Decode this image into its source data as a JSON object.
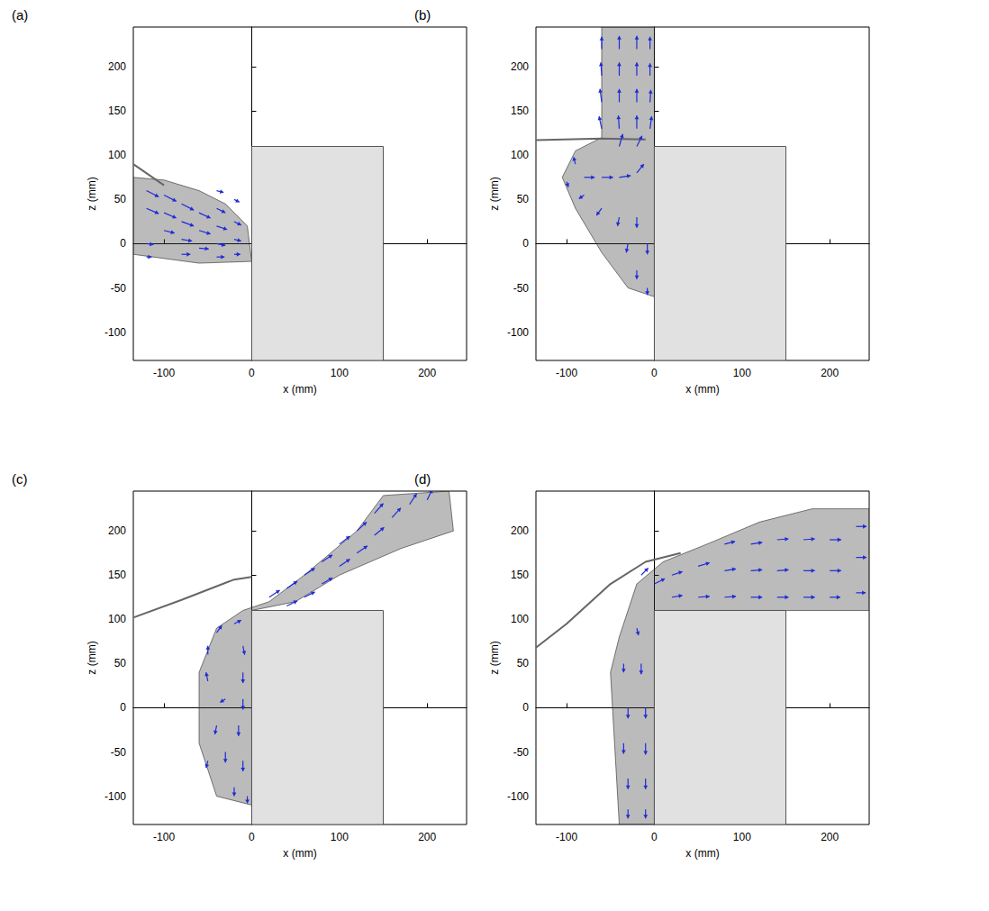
{
  "chart_data": [
    {
      "type": "quiver",
      "title": "(a)",
      "xlabel": "x (mm)",
      "ylabel": "z (mm)",
      "xlim": [
        -135,
        245
      ],
      "ylim": [
        -132,
        245
      ],
      "xticks": [
        -100,
        0,
        100,
        200
      ],
      "yticks": [
        -100,
        -50,
        0,
        50,
        100,
        150,
        200
      ],
      "color": "#1f2ad6",
      "block": {
        "x": [
          0,
          150
        ],
        "z": [
          -132,
          110
        ]
      },
      "surface": [
        [
          -135,
          90
        ],
        [
          -100,
          66
        ]
      ],
      "water": [
        [
          -135,
          75
        ],
        [
          -100,
          72
        ],
        [
          -60,
          60
        ],
        [
          -30,
          45
        ],
        [
          -5,
          20
        ],
        [
          0,
          -20
        ],
        [
          -60,
          -22
        ],
        [
          -135,
          -12
        ]
      ],
      "vectors": [
        [
          -120,
          60,
          14,
          -7
        ],
        [
          -120,
          40,
          14,
          -6
        ],
        [
          -100,
          55,
          14,
          -7
        ],
        [
          -100,
          35,
          14,
          -6
        ],
        [
          -100,
          15,
          12,
          -3
        ],
        [
          -80,
          45,
          14,
          -7
        ],
        [
          -80,
          25,
          14,
          -5
        ],
        [
          -80,
          5,
          12,
          -2
        ],
        [
          -80,
          -12,
          10,
          0
        ],
        [
          -60,
          35,
          13,
          -6
        ],
        [
          -60,
          15,
          13,
          -4
        ],
        [
          -60,
          -5,
          11,
          -1
        ],
        [
          -40,
          60,
          8,
          -2
        ],
        [
          -40,
          40,
          10,
          -5
        ],
        [
          -40,
          20,
          12,
          -4
        ],
        [
          -40,
          0,
          10,
          -2
        ],
        [
          -40,
          -15,
          9,
          0
        ],
        [
          -20,
          50,
          6,
          -3
        ],
        [
          -20,
          25,
          8,
          -4
        ],
        [
          -20,
          5,
          8,
          -2
        ],
        [
          -20,
          -12,
          7,
          0
        ],
        [
          -120,
          0,
          8,
          -1
        ],
        [
          -120,
          -15,
          6,
          0
        ]
      ]
    },
    {
      "type": "quiver",
      "title": "(b)",
      "xlabel": "x (mm)",
      "ylabel": "z (mm)",
      "xlim": [
        -135,
        245
      ],
      "ylim": [
        -132,
        245
      ],
      "xticks": [
        -100,
        0,
        100,
        200
      ],
      "yticks": [
        -100,
        -50,
        0,
        50,
        100,
        150,
        200
      ],
      "color": "#1f2ad6",
      "block": {
        "x": [
          0,
          150
        ],
        "z": [
          -132,
          110
        ]
      },
      "surface": [
        [
          -135,
          117
        ],
        [
          -60,
          119
        ],
        [
          -10,
          118
        ]
      ],
      "water": [
        [
          -60,
          245
        ],
        [
          0,
          245
        ],
        [
          0,
          -60
        ],
        [
          -30,
          -50
        ],
        [
          -60,
          -10
        ],
        [
          -90,
          40
        ],
        [
          -105,
          75
        ],
        [
          -90,
          105
        ],
        [
          -60,
          120
        ]
      ],
      "vectors": [
        [
          -60,
          130,
          -3,
          14
        ],
        [
          -60,
          160,
          -2,
          15
        ],
        [
          -60,
          190,
          -1,
          15
        ],
        [
          -60,
          220,
          0,
          14
        ],
        [
          -40,
          130,
          -1,
          15
        ],
        [
          -40,
          160,
          0,
          15
        ],
        [
          -40,
          190,
          0,
          15
        ],
        [
          -40,
          220,
          0,
          15
        ],
        [
          -20,
          130,
          0,
          15
        ],
        [
          -20,
          160,
          0,
          15
        ],
        [
          -20,
          190,
          0,
          15
        ],
        [
          -20,
          220,
          0,
          15
        ],
        [
          -5,
          130,
          2,
          14
        ],
        [
          -5,
          160,
          1,
          14
        ],
        [
          -5,
          190,
          0,
          14
        ],
        [
          -5,
          220,
          0,
          14
        ],
        [
          -40,
          110,
          4,
          14
        ],
        [
          -20,
          110,
          6,
          12
        ],
        [
          -90,
          90,
          -2,
          8
        ],
        [
          -100,
          70,
          2,
          -6
        ],
        [
          -80,
          75,
          12,
          0
        ],
        [
          -60,
          75,
          13,
          0
        ],
        [
          -40,
          75,
          13,
          2
        ],
        [
          -20,
          80,
          8,
          10
        ],
        [
          -80,
          55,
          -6,
          -4
        ],
        [
          -60,
          40,
          -6,
          -8
        ],
        [
          -40,
          30,
          -2,
          -10
        ],
        [
          -20,
          30,
          0,
          -12
        ],
        [
          -30,
          0,
          -2,
          -10
        ],
        [
          -8,
          0,
          0,
          -12
        ],
        [
          -20,
          -30,
          0,
          -10
        ],
        [
          -8,
          -50,
          0,
          -8
        ]
      ]
    },
    {
      "type": "quiver",
      "title": "(c)",
      "xlabel": "x (mm)",
      "ylabel": "z (mm)",
      "xlim": [
        -135,
        245
      ],
      "ylim": [
        -132,
        245
      ],
      "xticks": [
        -100,
        0,
        100,
        200
      ],
      "yticks": [
        -100,
        -50,
        0,
        50,
        100,
        150,
        200
      ],
      "color": "#1f2ad6",
      "block": {
        "x": [
          0,
          150
        ],
        "z": [
          -132,
          110
        ]
      },
      "surface": [
        [
          -135,
          102
        ],
        [
          -80,
          122
        ],
        [
          -20,
          145
        ],
        [
          0,
          148
        ]
      ],
      "water": [
        [
          0,
          -110
        ],
        [
          -40,
          -100
        ],
        [
          -60,
          -40
        ],
        [
          -60,
          40
        ],
        [
          -40,
          90
        ],
        [
          -10,
          110
        ],
        [
          20,
          120
        ],
        [
          60,
          150
        ],
        [
          120,
          200
        ],
        [
          150,
          240
        ],
        [
          225,
          245
        ],
        [
          230,
          200
        ],
        [
          170,
          180
        ],
        [
          100,
          150
        ],
        [
          50,
          120
        ],
        [
          0,
          110
        ]
      ],
      "vectors": [
        [
          20,
          125,
          12,
          8
        ],
        [
          40,
          135,
          12,
          8
        ],
        [
          60,
          150,
          12,
          8
        ],
        [
          80,
          140,
          12,
          7
        ],
        [
          80,
          165,
          12,
          8
        ],
        [
          100,
          160,
          12,
          8
        ],
        [
          100,
          185,
          12,
          9
        ],
        [
          120,
          175,
          12,
          8
        ],
        [
          120,
          200,
          11,
          10
        ],
        [
          140,
          195,
          11,
          9
        ],
        [
          140,
          220,
          10,
          11
        ],
        [
          160,
          215,
          10,
          11
        ],
        [
          180,
          230,
          8,
          12
        ],
        [
          200,
          235,
          6,
          12
        ],
        [
          40,
          115,
          12,
          6
        ],
        [
          60,
          125,
          12,
          6
        ],
        [
          -50,
          60,
          0,
          10
        ],
        [
          -40,
          85,
          6,
          8
        ],
        [
          -20,
          95,
          8,
          4
        ],
        [
          -10,
          70,
          2,
          -10
        ],
        [
          -10,
          40,
          0,
          -12
        ],
        [
          -50,
          30,
          -2,
          10
        ],
        [
          -30,
          10,
          -6,
          -4
        ],
        [
          -10,
          10,
          0,
          -12
        ],
        [
          -40,
          -20,
          -2,
          -10
        ],
        [
          -15,
          -20,
          0,
          -12
        ],
        [
          -30,
          -50,
          0,
          -12
        ],
        [
          -10,
          -60,
          0,
          -12
        ],
        [
          -20,
          -90,
          0,
          -10
        ],
        [
          -5,
          -100,
          0,
          -8
        ],
        [
          -50,
          -60,
          -2,
          -8
        ]
      ]
    },
    {
      "type": "quiver",
      "title": "(d)",
      "xlabel": "x (mm)",
      "ylabel": "z (mm)",
      "xlim": [
        -135,
        245
      ],
      "ylim": [
        -132,
        245
      ],
      "xticks": [
        -100,
        0,
        100,
        200
      ],
      "yticks": [
        -100,
        -50,
        0,
        50,
        100,
        150,
        200
      ],
      "color": "#1f2ad6",
      "block": {
        "x": [
          0,
          150
        ],
        "z": [
          -132,
          110
        ]
      },
      "surface": [
        [
          -135,
          68
        ],
        [
          -100,
          95
        ],
        [
          -50,
          140
        ],
        [
          -10,
          165
        ],
        [
          30,
          175
        ]
      ],
      "water": [
        [
          -40,
          -132
        ],
        [
          0,
          -132
        ],
        [
          0,
          110
        ],
        [
          245,
          110
        ],
        [
          245,
          225
        ],
        [
          180,
          225
        ],
        [
          120,
          210
        ],
        [
          60,
          185
        ],
        [
          10,
          165
        ],
        [
          -20,
          140
        ],
        [
          -40,
          80
        ],
        [
          -50,
          40
        ]
      ],
      "vectors": [
        [
          20,
          150,
          12,
          4
        ],
        [
          20,
          125,
          12,
          2
        ],
        [
          50,
          125,
          13,
          1
        ],
        [
          50,
          160,
          13,
          4
        ],
        [
          80,
          125,
          13,
          1
        ],
        [
          80,
          155,
          13,
          2
        ],
        [
          80,
          185,
          12,
          3
        ],
        [
          110,
          125,
          13,
          0
        ],
        [
          110,
          155,
          13,
          1
        ],
        [
          110,
          185,
          13,
          2
        ],
        [
          140,
          125,
          13,
          0
        ],
        [
          140,
          155,
          13,
          1
        ],
        [
          140,
          190,
          13,
          1
        ],
        [
          170,
          125,
          13,
          0
        ],
        [
          170,
          155,
          13,
          0
        ],
        [
          170,
          190,
          13,
          1
        ],
        [
          200,
          125,
          12,
          0
        ],
        [
          200,
          155,
          13,
          0
        ],
        [
          200,
          190,
          13,
          0
        ],
        [
          230,
          130,
          11,
          0
        ],
        [
          230,
          170,
          12,
          0
        ],
        [
          230,
          205,
          12,
          0
        ],
        [
          -15,
          150,
          8,
          8
        ],
        [
          0,
          140,
          12,
          6
        ],
        [
          -35,
          50,
          0,
          -10
        ],
        [
          -15,
          50,
          0,
          -12
        ],
        [
          -30,
          0,
          0,
          -12
        ],
        [
          -10,
          0,
          0,
          -12
        ],
        [
          -35,
          -40,
          0,
          -12
        ],
        [
          -10,
          -40,
          0,
          -13
        ],
        [
          -30,
          -80,
          0,
          -12
        ],
        [
          -10,
          -80,
          0,
          -12
        ],
        [
          -30,
          -115,
          0,
          -10
        ],
        [
          -10,
          -115,
          0,
          -10
        ],
        [
          -20,
          90,
          2,
          -8
        ]
      ]
    }
  ]
}
